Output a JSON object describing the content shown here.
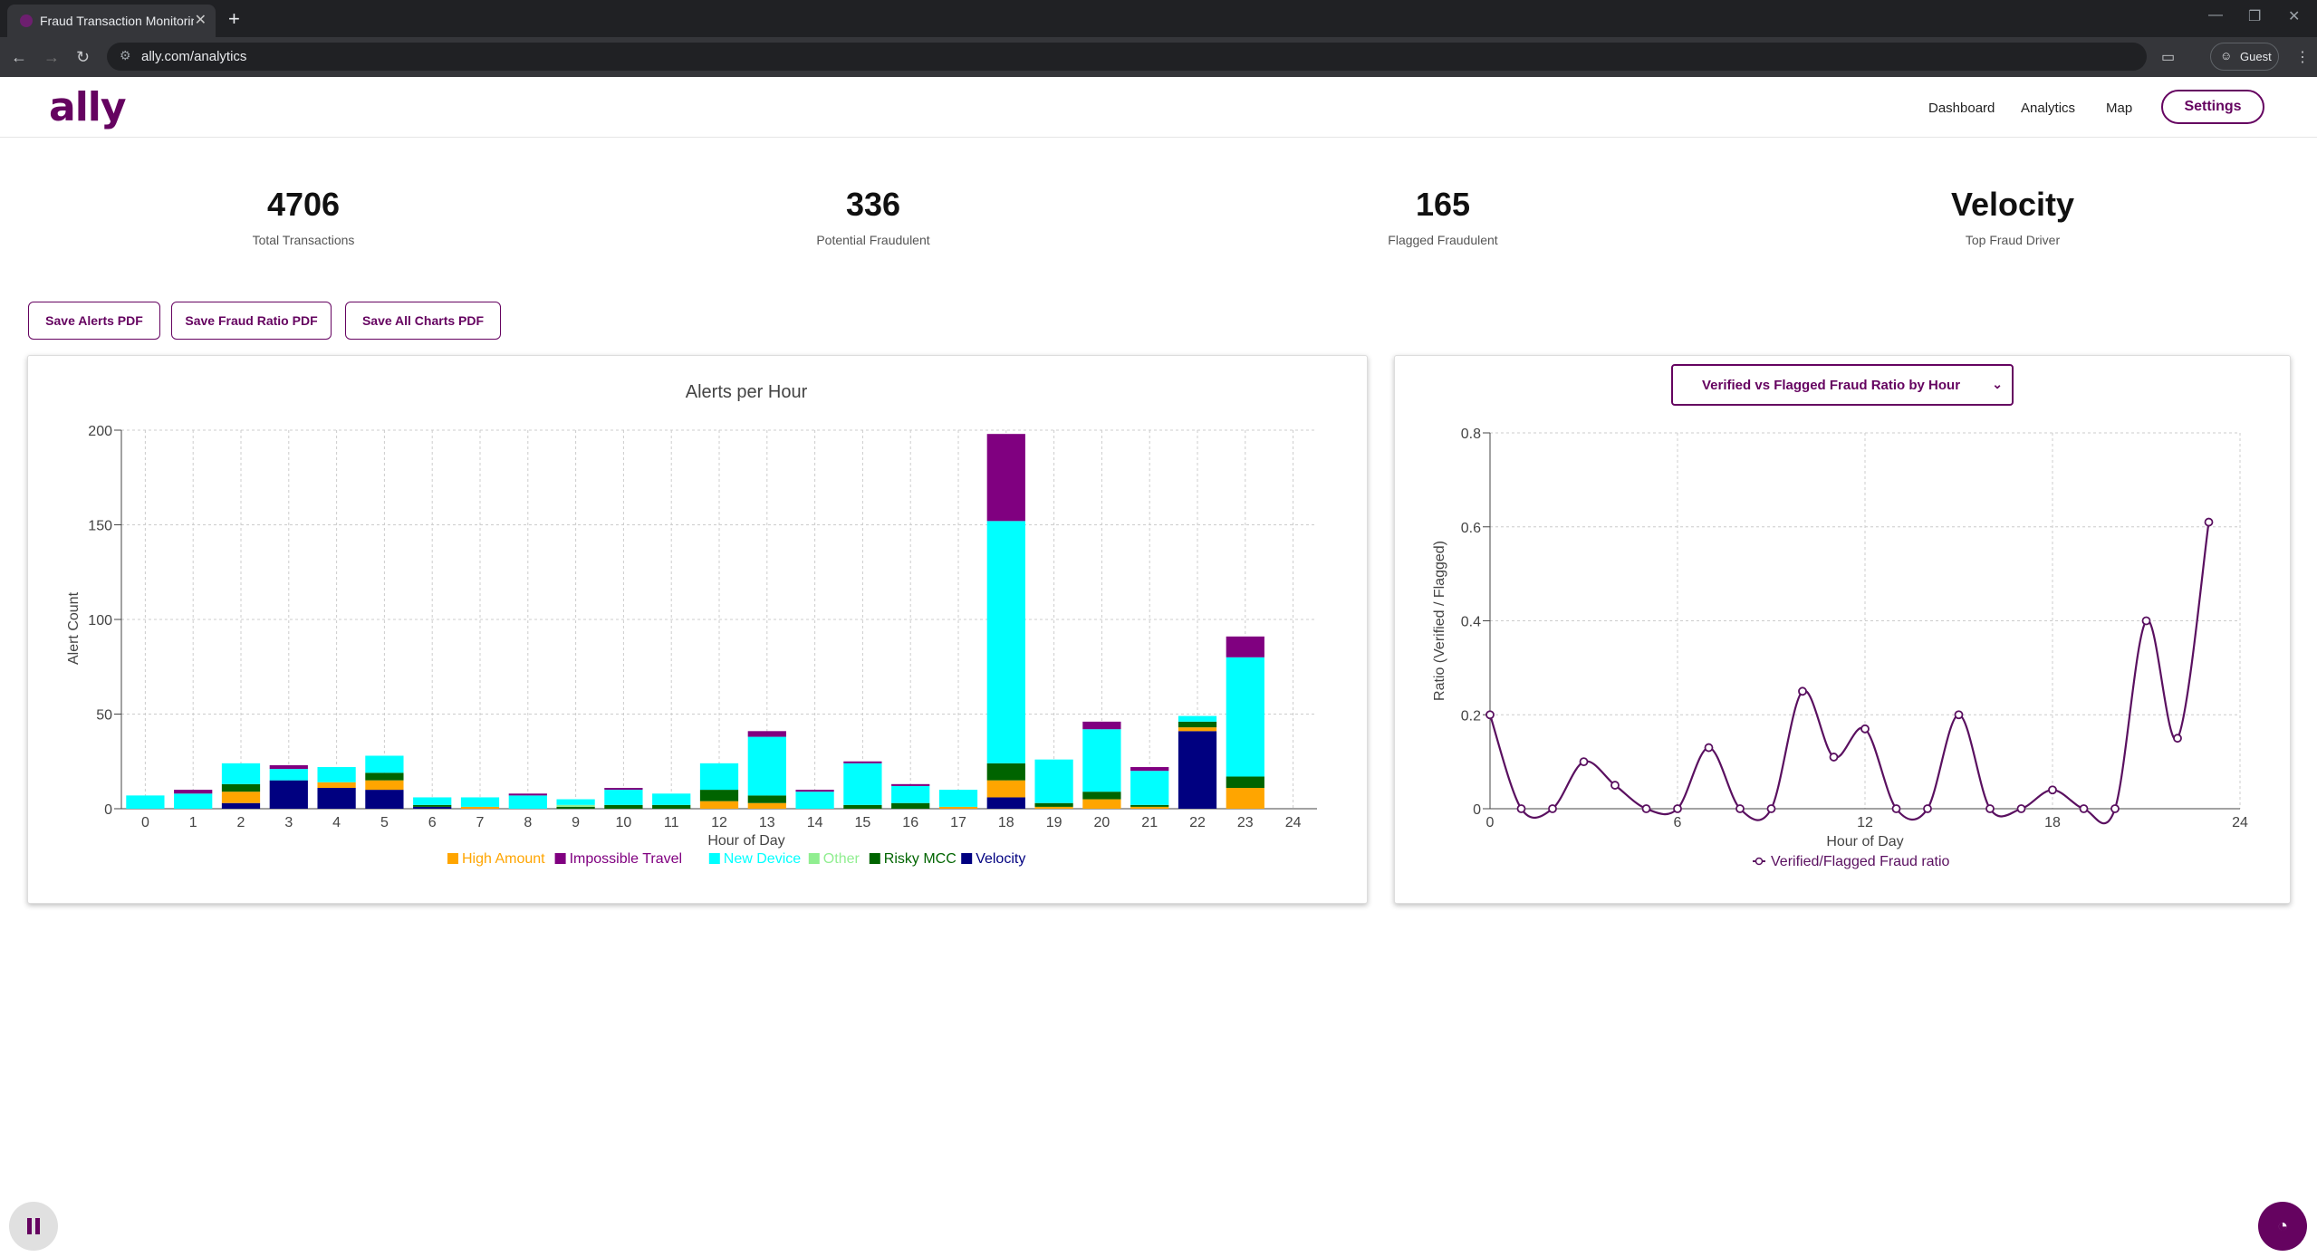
{
  "browser": {
    "tab_title": "Fraud Transaction Monitoring D",
    "url": "ally.com/analytics",
    "profile_label": "Guest"
  },
  "header": {
    "logo": "ally",
    "nav": [
      "Dashboard",
      "Analytics",
      "Map"
    ],
    "settings_label": "Settings"
  },
  "stats": [
    {
      "value": "4706",
      "label": "Total Transactions"
    },
    {
      "value": "336",
      "label": "Potential Fraudulent"
    },
    {
      "value": "165",
      "label": "Flagged Fraudulent"
    },
    {
      "value": "Velocity",
      "label": "Top Fraud Driver"
    }
  ],
  "buttons": {
    "alerts_pdf": "Save Alerts PDF",
    "ratio_pdf": "Save Fraud Ratio PDF",
    "all_pdf": "Save All Charts PDF"
  },
  "ratio_select": {
    "selected": "Verified vs Flagged Fraud Ratio by Hour"
  },
  "colors": {
    "brand": "#650360"
  },
  "chart_data": [
    {
      "type": "bar",
      "stacked": true,
      "title": "Alerts per Hour",
      "xlabel": "Hour of Day",
      "ylabel": "Alert Count",
      "xlim": [
        -0.5,
        24.5
      ],
      "ylim": [
        0,
        200
      ],
      "x_ticks": [
        0,
        1,
        2,
        3,
        4,
        5,
        6,
        7,
        8,
        9,
        10,
        11,
        12,
        13,
        14,
        15,
        16,
        17,
        18,
        19,
        20,
        21,
        22,
        23,
        24
      ],
      "y_ticks": [
        0,
        50,
        100,
        150,
        200
      ],
      "grid": true,
      "legend_position": "bottom",
      "categories": [
        0,
        1,
        2,
        3,
        4,
        5,
        6,
        7,
        8,
        9,
        10,
        11,
        12,
        13,
        14,
        15,
        16,
        17,
        18,
        19,
        20,
        21,
        22,
        23
      ],
      "series": [
        {
          "name": "Velocity",
          "color": "#000080",
          "values": [
            0,
            0,
            3,
            15,
            11,
            10,
            1,
            0,
            0,
            0,
            0,
            0,
            0,
            0,
            0,
            0,
            0,
            0,
            6,
            0,
            0,
            0,
            41,
            0
          ]
        },
        {
          "name": "High Amount",
          "color": "#ffa500",
          "values": [
            0,
            0,
            6,
            0,
            3,
            5,
            0,
            1,
            0,
            0,
            0,
            0,
            4,
            3,
            0,
            0,
            0,
            1,
            9,
            1,
            5,
            1,
            2,
            11
          ]
        },
        {
          "name": "Risky MCC",
          "color": "#006400",
          "values": [
            0,
            0,
            4,
            0,
            0,
            4,
            1,
            0,
            0,
            1,
            2,
            2,
            6,
            4,
            0,
            2,
            3,
            0,
            9,
            2,
            4,
            1,
            3,
            6
          ]
        },
        {
          "name": "Other",
          "color": "#90ee90",
          "values": [
            0,
            0,
            0,
            0,
            0,
            0,
            0,
            0,
            0,
            1,
            0,
            0,
            0,
            0,
            0,
            0,
            0,
            0,
            0,
            0,
            0,
            0,
            0,
            0
          ]
        },
        {
          "name": "New Device",
          "color": "#00ffff",
          "values": [
            7,
            8,
            11,
            6,
            8,
            9,
            4,
            5,
            7,
            3,
            8,
            6,
            14,
            31,
            9,
            22,
            9,
            9,
            128,
            23,
            33,
            18,
            3,
            63
          ]
        },
        {
          "name": "Impossible Travel",
          "color": "#800080",
          "values": [
            0,
            2,
            0,
            2,
            0,
            0,
            0,
            0,
            1,
            0,
            1,
            0,
            0,
            3,
            1,
            1,
            1,
            0,
            46,
            0,
            4,
            2,
            0,
            11
          ]
        }
      ],
      "legend_order": [
        "High Amount",
        "Impossible Travel",
        "New Device",
        "Other",
        "Risky MCC",
        "Velocity"
      ]
    },
    {
      "type": "line",
      "title": "",
      "xlabel": "Hour of Day",
      "ylabel": "Ratio (Verified / Flagged)",
      "xlim": [
        0,
        24
      ],
      "ylim": [
        0,
        0.8
      ],
      "x_ticks": [
        0,
        6,
        12,
        18,
        24
      ],
      "y_ticks": [
        0,
        0.2,
        0.4,
        0.6,
        0.8
      ],
      "grid": true,
      "legend_position": "bottom",
      "series": [
        {
          "name": "Verified/Flagged Fraud ratio",
          "color": "#5a1060",
          "x": [
            0,
            1,
            2,
            3,
            4,
            5,
            6,
            7,
            8,
            9,
            10,
            11,
            12,
            13,
            14,
            15,
            16,
            17,
            18,
            19,
            20,
            21,
            22,
            23
          ],
          "values": [
            0.2,
            0,
            0,
            0.1,
            0.05,
            0,
            0,
            0.13,
            0,
            0,
            0.25,
            0.11,
            0.17,
            0,
            0,
            0.2,
            0,
            0,
            0.04,
            0,
            0,
            0.4,
            0.15,
            0.61
          ]
        }
      ]
    }
  ]
}
